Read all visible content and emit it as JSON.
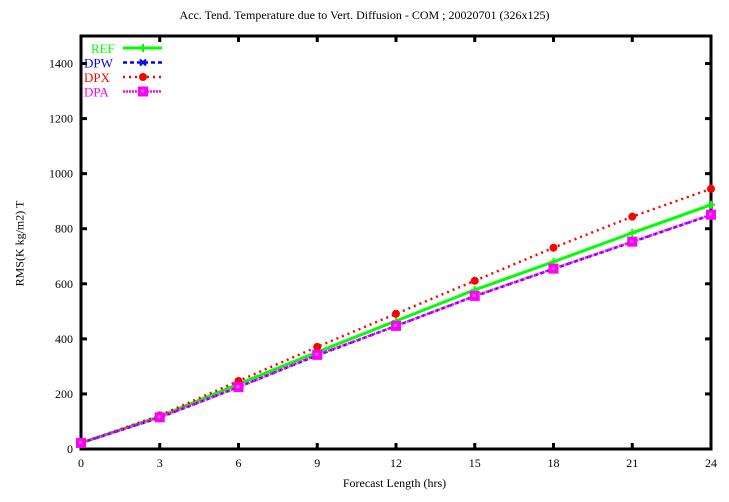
{
  "title": "Acc. Tend. Temperature due to Vert. Diffusion - COM ; 20020701 (326x125)",
  "chart_data": {
    "type": "line",
    "title": "Acc. Tend. Temperature due to Vert. Diffusion - COM ; 20020701 (326x125)",
    "xlabel": "Forecast Length (hrs)",
    "ylabel": "RMS(K kg/m2) T",
    "x": [
      0,
      3,
      6,
      9,
      12,
      15,
      18,
      21,
      24
    ],
    "xticks": [
      "0",
      "3",
      "6",
      "9",
      "12",
      "15",
      "18",
      "21",
      "24"
    ],
    "yticks": [
      "0",
      "200",
      "400",
      "600",
      "800",
      "1000",
      "1200",
      "1400"
    ],
    "xlim": [
      0,
      24
    ],
    "ylim": [
      0,
      1500
    ],
    "grid": false,
    "legend_position": "top-left",
    "series": [
      {
        "name": "REF",
        "color": "#00ff00",
        "style": "solid",
        "marker": "plus",
        "values": [
          22,
          118,
          236,
          352,
          465,
          578,
          680,
          785,
          887
        ]
      },
      {
        "name": "DPW",
        "color": "#0000ff",
        "style": "dashed",
        "marker": "cross",
        "values": [
          22,
          114,
          225,
          340,
          447,
          555,
          654,
          752,
          850
        ]
      },
      {
        "name": "DPX",
        "color": "#ff0000",
        "style": "dotted",
        "marker": "filled-circle",
        "values": [
          22,
          122,
          247,
          371,
          491,
          611,
          731,
          844,
          945
        ]
      },
      {
        "name": "DPA",
        "color": "#ff00ff",
        "style": "dash-dot",
        "marker": "square",
        "values": [
          22,
          115,
          225,
          342,
          447,
          556,
          655,
          753,
          851
        ]
      }
    ]
  }
}
